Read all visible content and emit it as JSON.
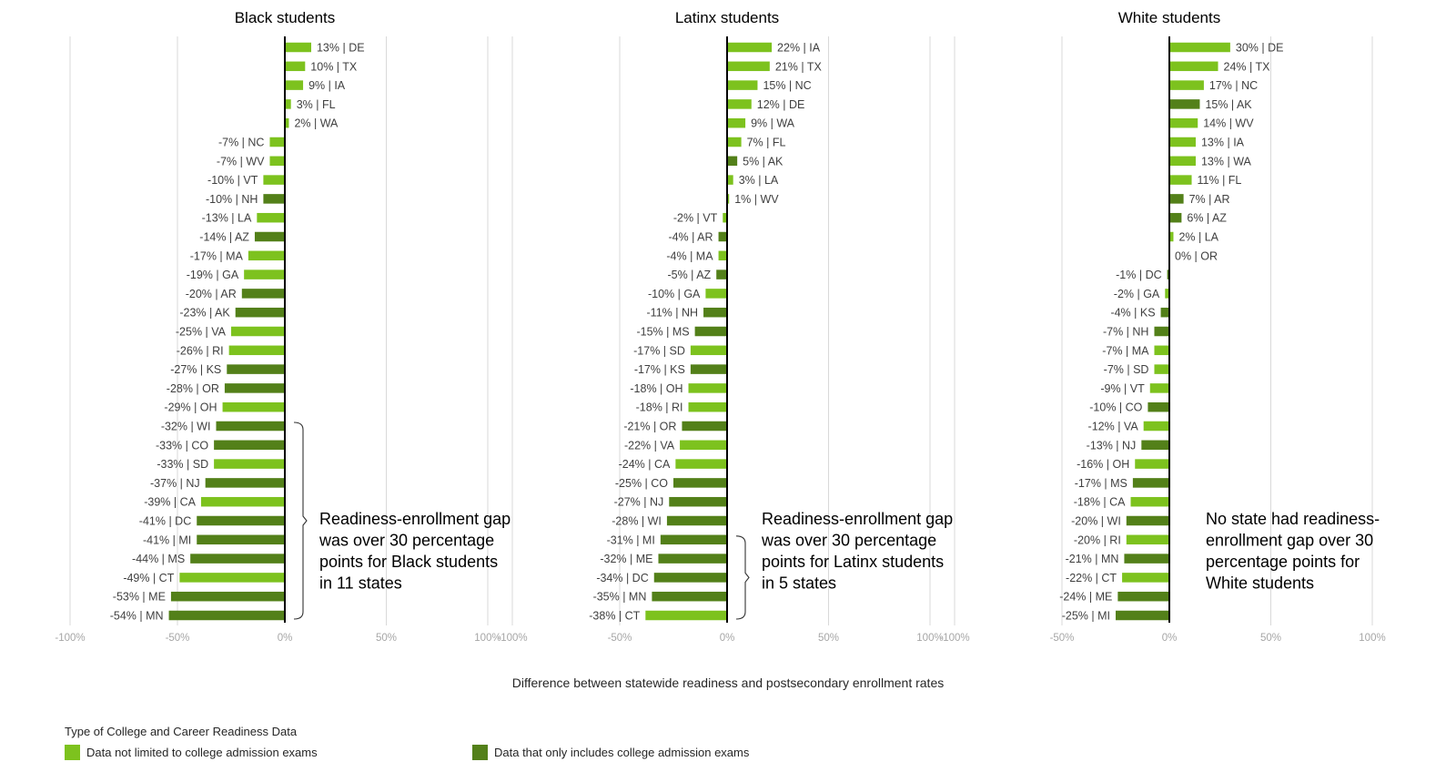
{
  "chart_data": [
    {
      "type": "bar",
      "orientation": "horizontal",
      "title": "Black students",
      "xlim": [
        -100,
        100
      ],
      "x_ticks": [
        "-100%",
        "-50%",
        "0%",
        "50%",
        "100%"
      ],
      "bars": [
        {
          "state": "DE",
          "label": "13% | DE",
          "value": 13,
          "category": "broad"
        },
        {
          "state": "TX",
          "label": "10% | TX",
          "value": 10,
          "category": "broad"
        },
        {
          "state": "IA",
          "label": "9% | IA",
          "value": 9,
          "category": "broad"
        },
        {
          "state": "FL",
          "label": "3% | FL",
          "value": 3,
          "category": "broad"
        },
        {
          "state": "WA",
          "label": "2% | WA",
          "value": 2,
          "category": "broad"
        },
        {
          "state": "NC",
          "label": "-7% | NC",
          "value": -7,
          "category": "broad"
        },
        {
          "state": "WV",
          "label": "-7% | WV",
          "value": -7,
          "category": "broad"
        },
        {
          "state": "VT",
          "label": "-10% | VT",
          "value": -10,
          "category": "broad"
        },
        {
          "state": "NH",
          "label": "-10% | NH",
          "value": -10,
          "category": "exams"
        },
        {
          "state": "LA",
          "label": "-13% | LA",
          "value": -13,
          "category": "broad"
        },
        {
          "state": "AZ",
          "label": "-14% | AZ",
          "value": -14,
          "category": "exams"
        },
        {
          "state": "MA",
          "label": "-17% | MA",
          "value": -17,
          "category": "broad"
        },
        {
          "state": "GA",
          "label": "-19% | GA",
          "value": -19,
          "category": "broad"
        },
        {
          "state": "AR",
          "label": "-20% | AR",
          "value": -20,
          "category": "exams"
        },
        {
          "state": "AK",
          "label": "-23% | AK",
          "value": -23,
          "category": "exams"
        },
        {
          "state": "VA",
          "label": "-25% | VA",
          "value": -25,
          "category": "broad"
        },
        {
          "state": "RI",
          "label": "-26% | RI",
          "value": -26,
          "category": "broad"
        },
        {
          "state": "KS",
          "label": "-27% | KS",
          "value": -27,
          "category": "exams"
        },
        {
          "state": "OR",
          "label": "-28% | OR",
          "value": -28,
          "category": "exams"
        },
        {
          "state": "OH",
          "label": "-29% | OH",
          "value": -29,
          "category": "broad"
        },
        {
          "state": "WI",
          "label": "-32% | WI",
          "value": -32,
          "category": "exams"
        },
        {
          "state": "CO",
          "label": "-33% | CO",
          "value": -33,
          "category": "exams"
        },
        {
          "state": "SD",
          "label": "-33% | SD",
          "value": -33,
          "category": "broad"
        },
        {
          "state": "NJ",
          "label": "-37% | NJ",
          "value": -37,
          "category": "exams"
        },
        {
          "state": "CA",
          "label": "-39% | CA",
          "value": -39,
          "category": "broad"
        },
        {
          "state": "DC",
          "label": "-41% | DC",
          "value": -41,
          "category": "exams"
        },
        {
          "state": "MI",
          "label": "-41% | MI",
          "value": -41,
          "category": "exams"
        },
        {
          "state": "MS",
          "label": "-44% | MS",
          "value": -44,
          "category": "exams"
        },
        {
          "state": "CT",
          "label": "-49% | CT",
          "value": -49,
          "category": "broad"
        },
        {
          "state": "ME",
          "label": "-53% | ME",
          "value": -53,
          "category": "exams"
        },
        {
          "state": "MN",
          "label": "-54% | MN",
          "value": -54,
          "category": "exams"
        }
      ],
      "annotation": {
        "lines": [
          "Readiness-enrollment gap",
          "was over 30 percentage",
          "points for Black students",
          "in 11 states"
        ],
        "bracket_rows": [
          20,
          30
        ]
      }
    },
    {
      "type": "bar",
      "orientation": "horizontal",
      "title": "Latinx students",
      "xlim": [
        -100,
        100
      ],
      "x_ticks": [
        "-100%",
        "-50%",
        "0%",
        "50%",
        "100%"
      ],
      "bars": [
        {
          "state": "IA",
          "label": "22% | IA",
          "value": 22,
          "category": "broad"
        },
        {
          "state": "TX",
          "label": "21% | TX",
          "value": 21,
          "category": "broad"
        },
        {
          "state": "NC",
          "label": "15% | NC",
          "value": 15,
          "category": "broad"
        },
        {
          "state": "DE",
          "label": "12% | DE",
          "value": 12,
          "category": "broad"
        },
        {
          "state": "WA",
          "label": "9% | WA",
          "value": 9,
          "category": "broad"
        },
        {
          "state": "FL",
          "label": "7% | FL",
          "value": 7,
          "category": "broad"
        },
        {
          "state": "AK",
          "label": "5% | AK",
          "value": 5,
          "category": "exams"
        },
        {
          "state": "LA",
          "label": "3% | LA",
          "value": 3,
          "category": "broad"
        },
        {
          "state": "WV",
          "label": "1% | WV",
          "value": 1,
          "category": "broad"
        },
        {
          "state": "VT",
          "label": "-2% | VT",
          "value": -2,
          "category": "broad"
        },
        {
          "state": "AR",
          "label": "-4% | AR",
          "value": -4,
          "category": "exams"
        },
        {
          "state": "MA",
          "label": "-4% | MA",
          "value": -4,
          "category": "broad"
        },
        {
          "state": "AZ",
          "label": "-5% | AZ",
          "value": -5,
          "category": "exams"
        },
        {
          "state": "GA",
          "label": "-10% | GA",
          "value": -10,
          "category": "broad"
        },
        {
          "state": "NH",
          "label": "-11% | NH",
          "value": -11,
          "category": "exams"
        },
        {
          "state": "MS",
          "label": "-15% | MS",
          "value": -15,
          "category": "exams"
        },
        {
          "state": "SD",
          "label": "-17% | SD",
          "value": -17,
          "category": "broad"
        },
        {
          "state": "KS",
          "label": "-17% | KS",
          "value": -17,
          "category": "exams"
        },
        {
          "state": "OH",
          "label": "-18% | OH",
          "value": -18,
          "category": "broad"
        },
        {
          "state": "RI",
          "label": "-18% | RI",
          "value": -18,
          "category": "broad"
        },
        {
          "state": "OR",
          "label": "-21% | OR",
          "value": -21,
          "category": "exams"
        },
        {
          "state": "VA",
          "label": "-22% | VA",
          "value": -22,
          "category": "broad"
        },
        {
          "state": "CA",
          "label": "-24% | CA",
          "value": -24,
          "category": "broad"
        },
        {
          "state": "CO",
          "label": "-25% | CO",
          "value": -25,
          "category": "exams"
        },
        {
          "state": "NJ",
          "label": "-27% | NJ",
          "value": -27,
          "category": "exams"
        },
        {
          "state": "WI",
          "label": "-28% | WI",
          "value": -28,
          "category": "exams"
        },
        {
          "state": "MI",
          "label": "-31% | MI",
          "value": -31,
          "category": "exams"
        },
        {
          "state": "ME",
          "label": "-32% | ME",
          "value": -32,
          "category": "exams"
        },
        {
          "state": "DC",
          "label": "-34% | DC",
          "value": -34,
          "category": "exams"
        },
        {
          "state": "MN",
          "label": "-35% | MN",
          "value": -35,
          "category": "exams"
        },
        {
          "state": "CT",
          "label": "-38% | CT",
          "value": -38,
          "category": "broad"
        }
      ],
      "annotation": {
        "lines": [
          "Readiness-enrollment gap",
          "was over 30 percentage",
          "points for Latinx students",
          "in 5 states"
        ],
        "bracket_rows": [
          26,
          30
        ]
      }
    },
    {
      "type": "bar",
      "orientation": "horizontal",
      "title": "White students",
      "xlim": [
        -100,
        100
      ],
      "x_ticks": [
        "-100%",
        "-50%",
        "0%",
        "50%",
        "100%"
      ],
      "bars": [
        {
          "state": "DE",
          "label": "30% | DE",
          "value": 30,
          "category": "broad"
        },
        {
          "state": "TX",
          "label": "24% | TX",
          "value": 24,
          "category": "broad"
        },
        {
          "state": "NC",
          "label": "17% | NC",
          "value": 17,
          "category": "broad"
        },
        {
          "state": "AK",
          "label": "15% | AK",
          "value": 15,
          "category": "exams"
        },
        {
          "state": "WV",
          "label": "14% | WV",
          "value": 14,
          "category": "broad"
        },
        {
          "state": "IA",
          "label": "13% | IA",
          "value": 13,
          "category": "broad"
        },
        {
          "state": "WA",
          "label": "13% | WA",
          "value": 13,
          "category": "broad"
        },
        {
          "state": "FL",
          "label": "11% | FL",
          "value": 11,
          "category": "broad"
        },
        {
          "state": "AR",
          "label": "7% | AR",
          "value": 7,
          "category": "exams"
        },
        {
          "state": "AZ",
          "label": "6% | AZ",
          "value": 6,
          "category": "exams"
        },
        {
          "state": "LA",
          "label": "2% | LA",
          "value": 2,
          "category": "broad"
        },
        {
          "state": "OR",
          "label": "0% | OR",
          "value": 0,
          "category": "exams"
        },
        {
          "state": "DC",
          "label": "-1% | DC",
          "value": -1,
          "category": "exams"
        },
        {
          "state": "GA",
          "label": "-2% | GA",
          "value": -2,
          "category": "broad"
        },
        {
          "state": "KS",
          "label": "-4% | KS",
          "value": -4,
          "category": "exams"
        },
        {
          "state": "NH",
          "label": "-7% | NH",
          "value": -7,
          "category": "exams"
        },
        {
          "state": "MA",
          "label": "-7% | MA",
          "value": -7,
          "category": "broad"
        },
        {
          "state": "SD",
          "label": "-7% | SD",
          "value": -7,
          "category": "broad"
        },
        {
          "state": "VT",
          "label": "-9% | VT",
          "value": -9,
          "category": "broad"
        },
        {
          "state": "CO",
          "label": "-10% | CO",
          "value": -10,
          "category": "exams"
        },
        {
          "state": "VA",
          "label": "-12% | VA",
          "value": -12,
          "category": "broad"
        },
        {
          "state": "NJ",
          "label": "-13% | NJ",
          "value": -13,
          "category": "exams"
        },
        {
          "state": "OH",
          "label": "-16% | OH",
          "value": -16,
          "category": "broad"
        },
        {
          "state": "MS",
          "label": "-17% | MS",
          "value": -17,
          "category": "exams"
        },
        {
          "state": "CA",
          "label": "-18% | CA",
          "value": -18,
          "category": "broad"
        },
        {
          "state": "WI",
          "label": "-20% | WI",
          "value": -20,
          "category": "exams"
        },
        {
          "state": "RI",
          "label": "-20% | RI",
          "value": -20,
          "category": "broad"
        },
        {
          "state": "MN",
          "label": "-21% | MN",
          "value": -21,
          "category": "exams"
        },
        {
          "state": "CT",
          "label": "-22% | CT",
          "value": -22,
          "category": "broad"
        },
        {
          "state": "ME",
          "label": "-24% | ME",
          "value": -24,
          "category": "exams"
        },
        {
          "state": "MI",
          "label": "-25% | MI",
          "value": -25,
          "category": "exams"
        }
      ],
      "annotation": {
        "lines": [
          "No state had readiness-",
          "enrollment gap over 30",
          "percentage points for",
          "White students"
        ],
        "bracket_rows": null
      }
    }
  ],
  "xlabel": "Difference between statewide readiness and postsecondary enrollment rates",
  "legend": {
    "title": "Type of College and Career Readiness Data",
    "items": [
      {
        "key": "broad",
        "label": "Data not limited to college admission exams",
        "color": "#7dc21e"
      },
      {
        "key": "exams",
        "label": "Data that only includes college admission exams",
        "color": "#538019"
      }
    ]
  },
  "colors": {
    "gridline": "#d9d9d9",
    "zero_line": "#000000",
    "tick_text": "#a6a6a6",
    "label_text": "#404040"
  }
}
